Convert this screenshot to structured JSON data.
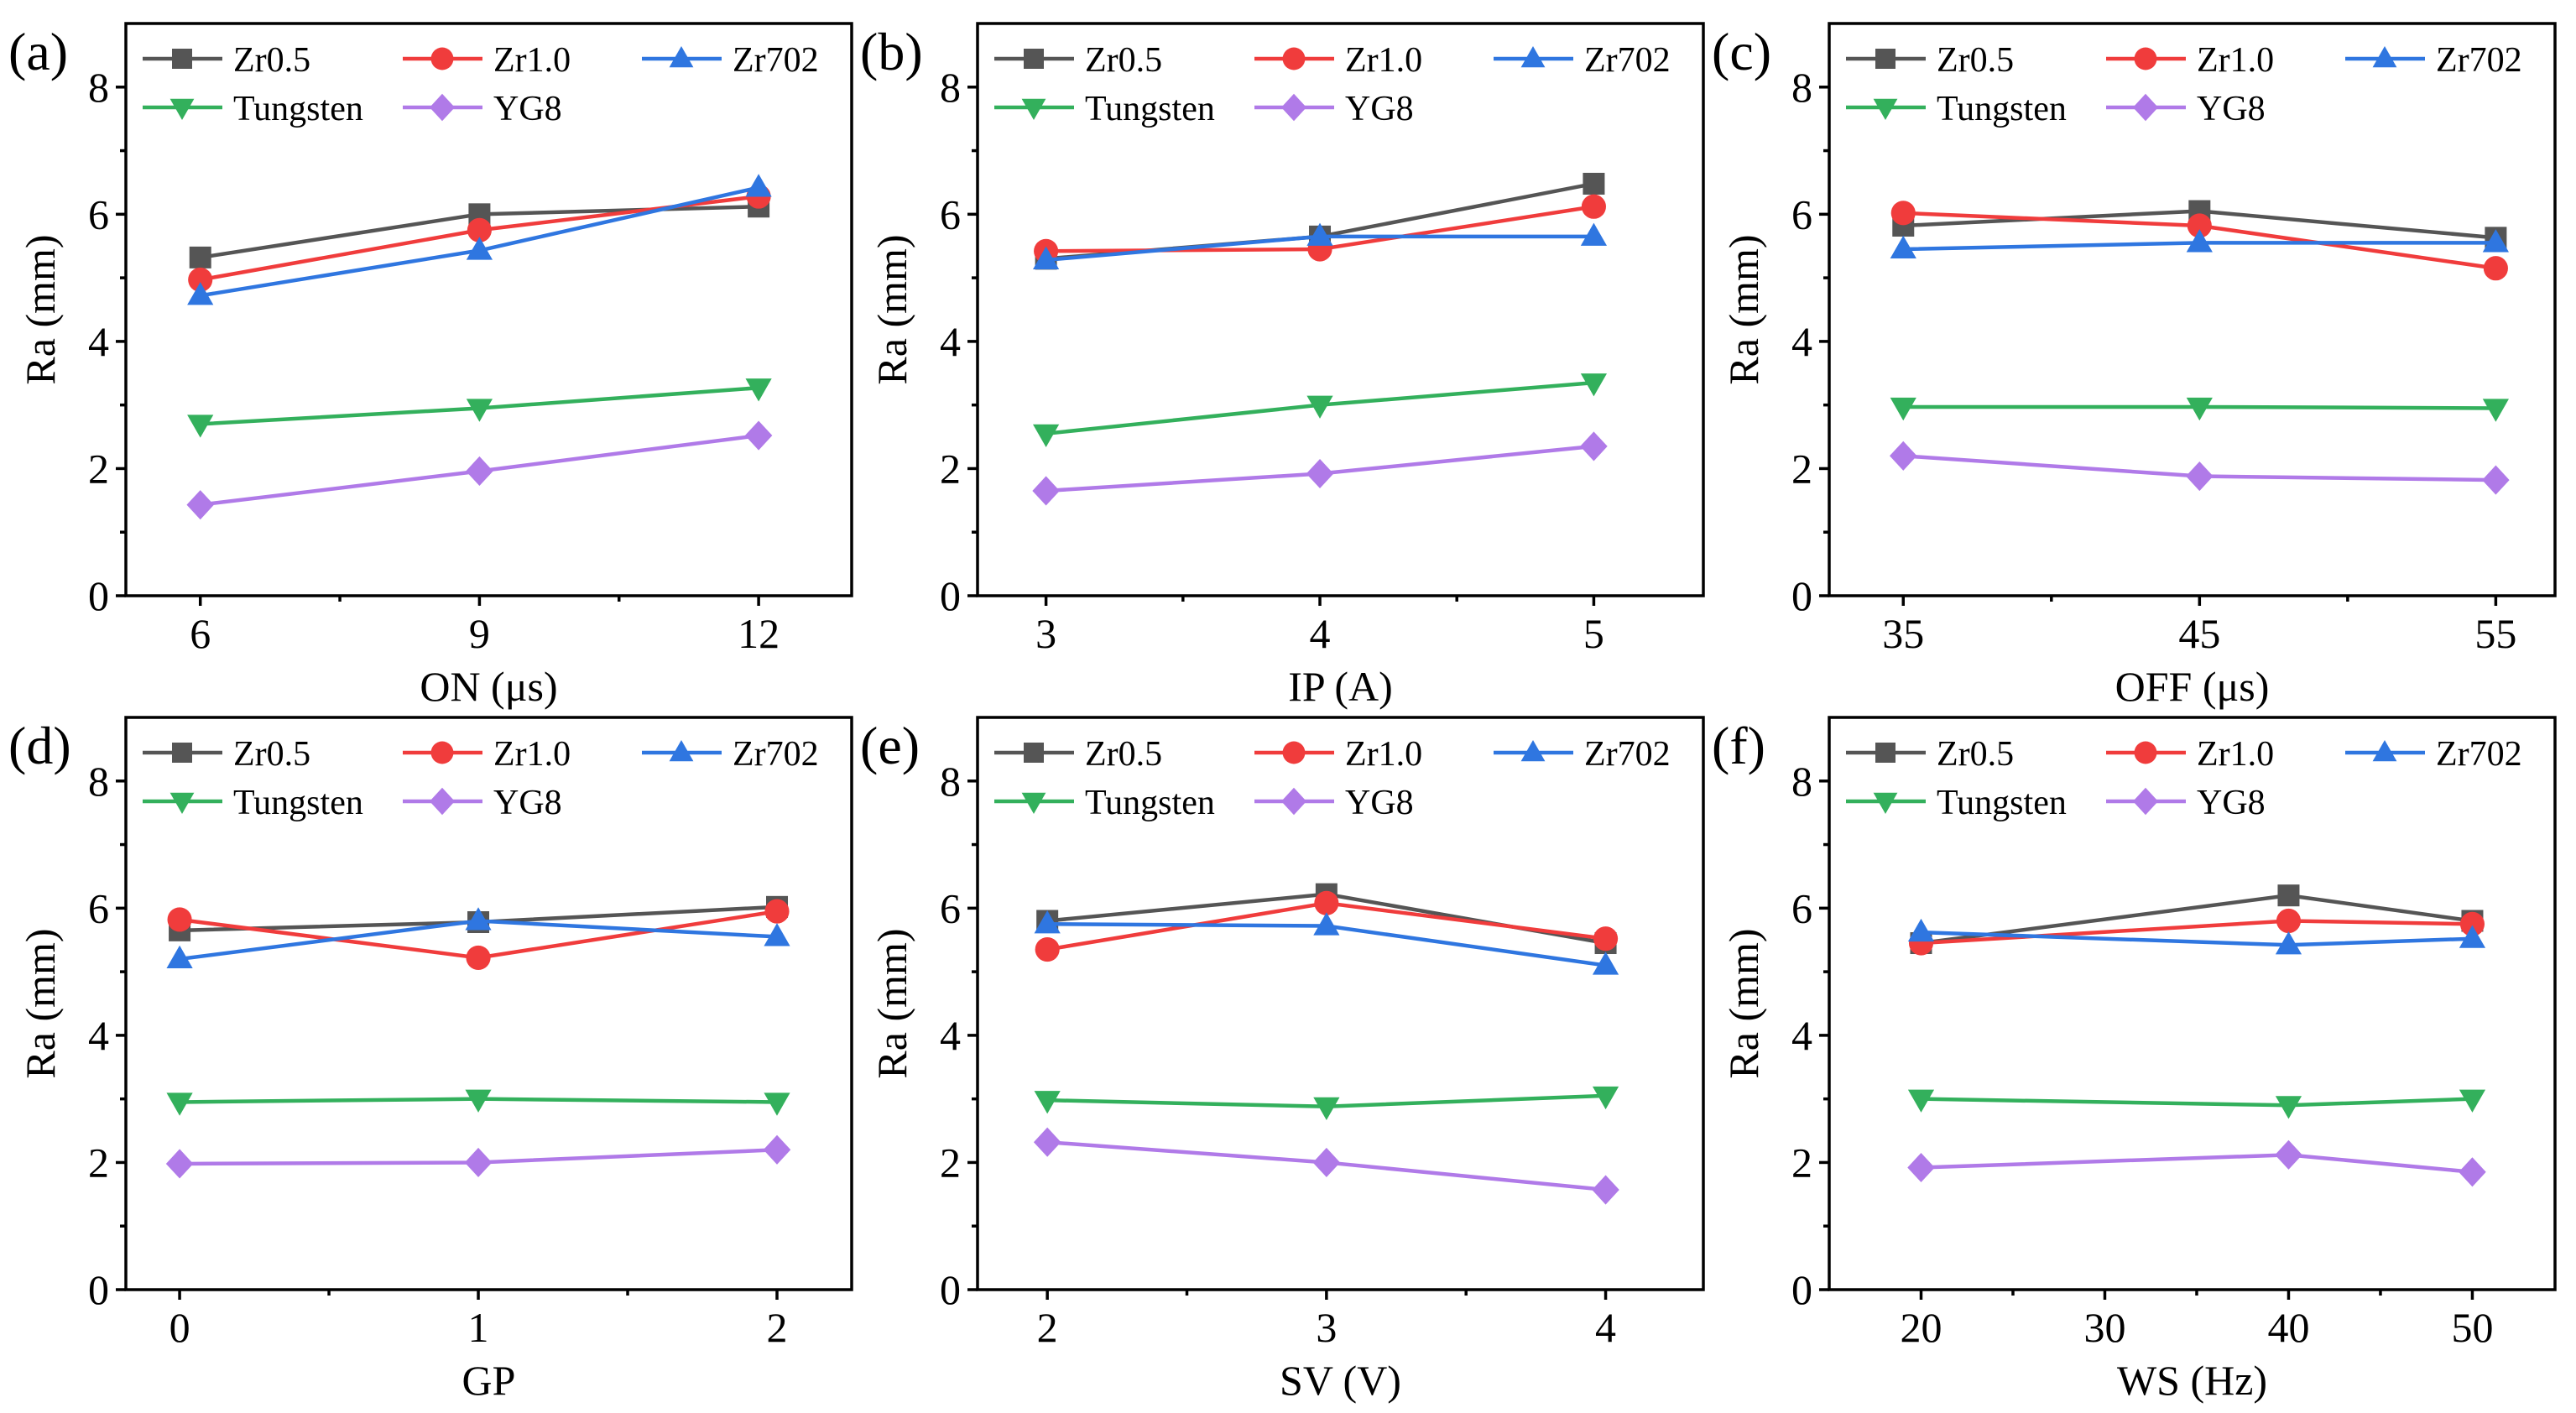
{
  "figure": {
    "ylabel": "Ra (mm)",
    "ylim": [
      0,
      9
    ],
    "yticks": [
      0,
      2,
      4,
      6,
      8
    ],
    "series_style": [
      {
        "name": "Zr0.5",
        "color": "#555555",
        "marker": "square"
      },
      {
        "name": "Zr1.0",
        "color": "#f03c3c",
        "marker": "circle"
      },
      {
        "name": "Zr702",
        "color": "#2f76e0",
        "marker": "triangle-up"
      },
      {
        "name": "Tungsten",
        "color": "#33b05c",
        "marker": "triangle-down"
      },
      {
        "name": "YG8",
        "color": "#b07ae8",
        "marker": "diamond"
      }
    ]
  },
  "chart_data": [
    {
      "panel": "(a)",
      "type": "line",
      "xlabel": "ON (μs)",
      "ylabel": "Ra (mm)",
      "x": [
        6,
        9,
        12
      ],
      "xlim": [
        5.2,
        13
      ],
      "xticks": [
        6,
        9,
        12
      ],
      "ylim": [
        0,
        9
      ],
      "legend": "top",
      "series": [
        {
          "name": "Zr0.5",
          "values": [
            5.32,
            6.0,
            6.12
          ]
        },
        {
          "name": "Zr1.0",
          "values": [
            4.97,
            5.75,
            6.28
          ]
        },
        {
          "name": "Zr702",
          "values": [
            4.72,
            5.43,
            6.42
          ]
        },
        {
          "name": "Tungsten",
          "values": [
            2.7,
            2.95,
            3.27
          ]
        },
        {
          "name": "YG8",
          "values": [
            1.43,
            1.96,
            2.52
          ]
        }
      ]
    },
    {
      "panel": "(b)",
      "type": "line",
      "xlabel": "IP (A)",
      "ylabel": "Ra (mm)",
      "x": [
        3,
        4,
        5
      ],
      "xlim": [
        2.75,
        5.4
      ],
      "xticks": [
        3,
        4,
        5
      ],
      "ylim": [
        0,
        9
      ],
      "legend": "top",
      "series": [
        {
          "name": "Zr0.5",
          "values": [
            5.3,
            5.65,
            6.48
          ]
        },
        {
          "name": "Zr1.0",
          "values": [
            5.42,
            5.45,
            6.12
          ]
        },
        {
          "name": "Zr702",
          "values": [
            5.28,
            5.65,
            5.65
          ]
        },
        {
          "name": "Tungsten",
          "values": [
            2.55,
            3.0,
            3.35
          ]
        },
        {
          "name": "YG8",
          "values": [
            1.65,
            1.92,
            2.35
          ]
        }
      ]
    },
    {
      "panel": "(c)",
      "type": "line",
      "xlabel": "OFF (μs)",
      "ylabel": "Ra (mm)",
      "x": [
        35,
        45,
        55
      ],
      "xlim": [
        32.5,
        57
      ],
      "xticks": [
        35,
        45,
        55
      ],
      "ylim": [
        0,
        9
      ],
      "legend": "top",
      "series": [
        {
          "name": "Zr0.5",
          "values": [
            5.82,
            6.05,
            5.63
          ]
        },
        {
          "name": "Zr1.0",
          "values": [
            6.02,
            5.82,
            5.15
          ]
        },
        {
          "name": "Zr702",
          "values": [
            5.45,
            5.55,
            5.55
          ]
        },
        {
          "name": "Tungsten",
          "values": [
            2.97,
            2.97,
            2.95
          ]
        },
        {
          "name": "YG8",
          "values": [
            2.2,
            1.88,
            1.82
          ]
        }
      ]
    },
    {
      "panel": "(d)",
      "type": "line",
      "xlabel": "GP",
      "ylabel": "Ra (mm)",
      "x": [
        0,
        1,
        2
      ],
      "xlim": [
        -0.18,
        2.25
      ],
      "xticks": [
        0,
        1,
        2
      ],
      "ylim": [
        0,
        9
      ],
      "legend": "top",
      "series": [
        {
          "name": "Zr0.5",
          "values": [
            5.65,
            5.78,
            6.02
          ]
        },
        {
          "name": "Zr1.0",
          "values": [
            5.82,
            5.22,
            5.95
          ]
        },
        {
          "name": "Zr702",
          "values": [
            5.2,
            5.8,
            5.55
          ]
        },
        {
          "name": "Tungsten",
          "values": [
            2.95,
            3.0,
            2.95
          ]
        },
        {
          "name": "YG8",
          "values": [
            1.98,
            2.0,
            2.2
          ]
        }
      ]
    },
    {
      "panel": "(e)",
      "type": "line",
      "xlabel": "SV (V)",
      "ylabel": "Ra (mm)",
      "x": [
        2,
        3,
        4
      ],
      "xlim": [
        1.75,
        4.35
      ],
      "xticks": [
        2,
        3,
        4
      ],
      "ylim": [
        0,
        9
      ],
      "legend": "top",
      "series": [
        {
          "name": "Zr0.5",
          "values": [
            5.8,
            6.22,
            5.45
          ]
        },
        {
          "name": "Zr1.0",
          "values": [
            5.35,
            6.08,
            5.52
          ]
        },
        {
          "name": "Zr702",
          "values": [
            5.75,
            5.72,
            5.1
          ]
        },
        {
          "name": "Tungsten",
          "values": [
            2.98,
            2.88,
            3.05
          ]
        },
        {
          "name": "YG8",
          "values": [
            2.32,
            2.0,
            1.57
          ]
        }
      ]
    },
    {
      "panel": "(f)",
      "type": "line",
      "xlabel": "WS (Hz)",
      "ylabel": "Ra (mm)",
      "x": [
        20,
        40,
        50
      ],
      "xlim": [
        15,
        54.5
      ],
      "xticks": [
        20,
        30,
        40,
        50
      ],
      "ylim": [
        0,
        9
      ],
      "legend": "top",
      "series": [
        {
          "name": "Zr0.5",
          "values": [
            5.45,
            6.2,
            5.8
          ]
        },
        {
          "name": "Zr1.0",
          "values": [
            5.45,
            5.8,
            5.75
          ]
        },
        {
          "name": "Zr702",
          "values": [
            5.62,
            5.42,
            5.52
          ]
        },
        {
          "name": "Tungsten",
          "values": [
            3.0,
            2.9,
            3.0
          ]
        },
        {
          "name": "YG8",
          "values": [
            1.92,
            2.12,
            1.85
          ]
        }
      ]
    }
  ]
}
